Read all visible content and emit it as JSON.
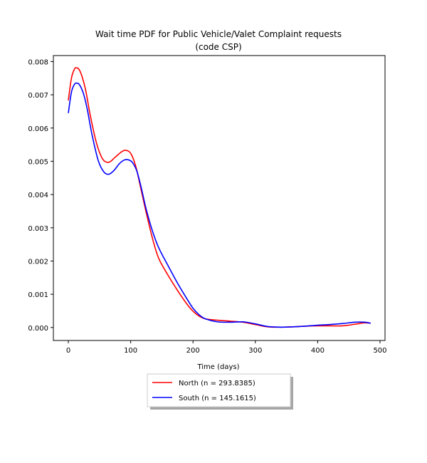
{
  "chart_data": {
    "type": "line",
    "title_line1": "Wait time PDF for Public Vehicle/Valet Complaint  requests",
    "title_line2": "(code CSP)",
    "xlabel": "Time (days)",
    "ylabel": "",
    "xlim": [
      -24,
      508
    ],
    "ylim": [
      -0.00039,
      0.00818
    ],
    "xticks": [
      0,
      100,
      200,
      300,
      400,
      500
    ],
    "xtick_labels": [
      "0",
      "100",
      "200",
      "300",
      "400",
      "500"
    ],
    "yticks": [
      0.0,
      0.001,
      0.002,
      0.003,
      0.004,
      0.005,
      0.006,
      0.007,
      0.008
    ],
    "ytick_labels": [
      "0.000",
      "0.001",
      "0.002",
      "0.003",
      "0.004",
      "0.005",
      "0.006",
      "0.007",
      "0.008"
    ],
    "grid": false,
    "legend_position": "below",
    "series": [
      {
        "name": "North (n = 293.8385)",
        "color": "#ff0000",
        "x": [
          0,
          5,
          10,
          13,
          17,
          22,
          28,
          35,
          45,
          55,
          65,
          75,
          85,
          92,
          100,
          108,
          115,
          125,
          135,
          145,
          160,
          175,
          190,
          200,
          210,
          220,
          240,
          260,
          280,
          300,
          320,
          340,
          360,
          380,
          400,
          420,
          440,
          460,
          475,
          485
        ],
        "y": [
          0.00683,
          0.0075,
          0.00778,
          0.00781,
          0.00777,
          0.00755,
          0.00712,
          0.0064,
          0.00556,
          0.00507,
          0.00497,
          0.00512,
          0.00528,
          0.00533,
          0.00524,
          0.00486,
          0.00429,
          0.00345,
          0.00268,
          0.00208,
          0.00157,
          0.00112,
          0.00071,
          0.00049,
          0.00034,
          0.00026,
          0.00022,
          0.00019,
          0.00016,
          9e-05,
          2e-05,
          1e-05,
          2e-05,
          4e-05,
          5e-05,
          5e-05,
          5e-05,
          0.0001,
          0.00014,
          0.00013
        ]
      },
      {
        "name": "South (n = 145.1615)",
        "color": "#0000ff",
        "x": [
          0,
          5,
          10,
          14,
          18,
          24,
          30,
          38,
          48,
          57,
          65,
          73,
          82,
          90,
          97,
          103,
          110,
          117,
          125,
          135,
          145,
          160,
          175,
          190,
          200,
          210,
          220,
          240,
          260,
          280,
          300,
          320,
          340,
          360,
          380,
          400,
          420,
          440,
          460,
          475,
          485
        ],
        "y": [
          0.00645,
          0.00708,
          0.00732,
          0.00735,
          0.0073,
          0.00705,
          0.0066,
          0.0058,
          0.00502,
          0.00468,
          0.00461,
          0.00472,
          0.00493,
          0.00504,
          0.00504,
          0.00496,
          0.0047,
          0.0042,
          0.00355,
          0.0029,
          0.0024,
          0.00186,
          0.00134,
          0.00087,
          0.00058,
          0.00038,
          0.00026,
          0.00017,
          0.00016,
          0.00017,
          0.00011,
          3e-05,
          1e-05,
          2e-05,
          4e-05,
          7e-05,
          9e-05,
          0.00012,
          0.00016,
          0.00016,
          0.00013
        ]
      }
    ]
  }
}
